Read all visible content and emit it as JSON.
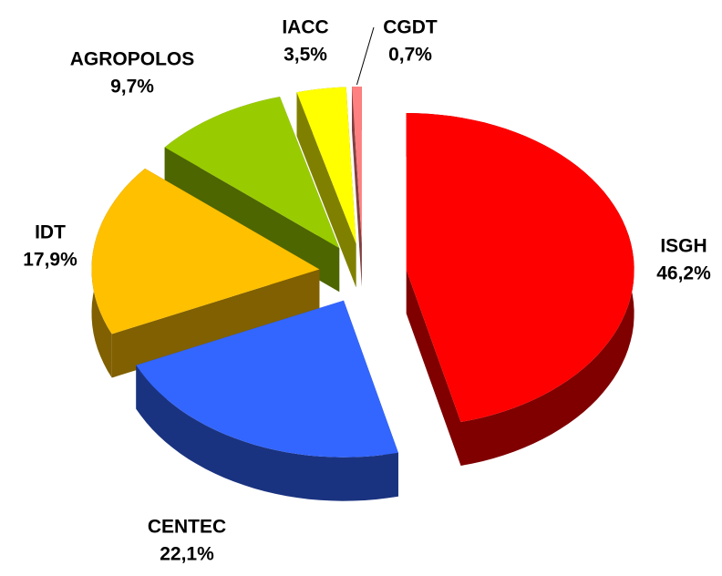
{
  "chart_data": {
    "type": "pie",
    "categories": [
      "ISGH",
      "CENTEC",
      "IDT",
      "AGROPOLOS",
      "IACC",
      "CGDT"
    ],
    "values": [
      46.2,
      22.1,
      17.9,
      9.7,
      3.5,
      0.7
    ],
    "value_labels": [
      "46,2%",
      "22,1%",
      "17,9%",
      "9,7%",
      "3,5%",
      "0,7%"
    ],
    "colors": [
      "#ff0000",
      "#3366ff",
      "#ffc000",
      "#99cc00",
      "#ffff00",
      "#ff8080"
    ]
  }
}
